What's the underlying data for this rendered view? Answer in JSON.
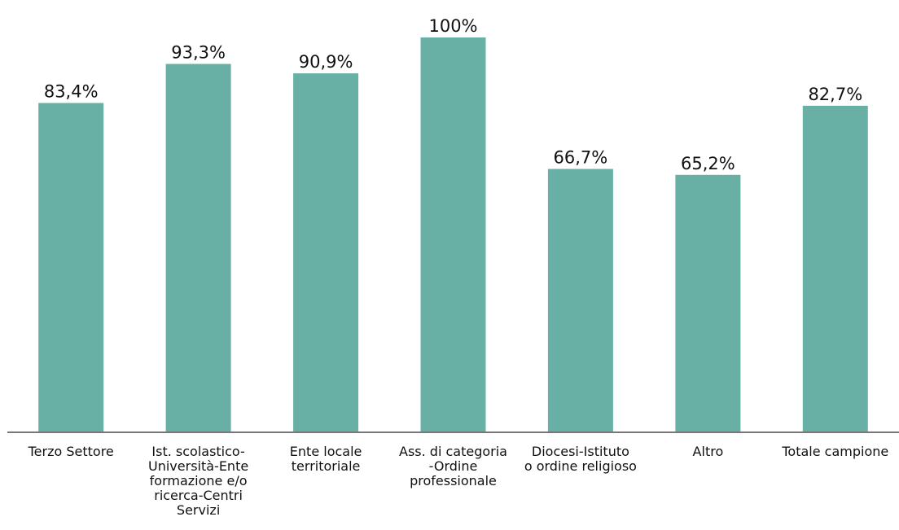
{
  "chart_data": {
    "type": "bar",
    "title": "",
    "xlabel": "",
    "ylabel": "",
    "ylim": [
      0,
      100
    ],
    "grid": false,
    "legend": "none",
    "bar_color": "#68b0a5",
    "axis_color": "#777777",
    "categories": [
      "Terzo Settore",
      "Ist. scolastico-Università-Ente formazione e/o ricerca-Centri Servizi",
      "Ente locale territoriale",
      "Ass. di categoria -Ordine professionale",
      "Diocesi-Istituto o ordine religioso",
      "Altro",
      "Totale campione"
    ],
    "category_lines": [
      [
        "Terzo Settore"
      ],
      [
        "Ist. scolastico-",
        "Università-Ente",
        "formazione e/o",
        "ricerca-Centri",
        "Servizi"
      ],
      [
        "Ente locale",
        "territoriale"
      ],
      [
        "Ass. di categoria",
        "-Ordine",
        "professionale"
      ],
      [
        "Diocesi-Istituto",
        "o ordine religioso"
      ],
      [
        "Altro"
      ],
      [
        "Totale campione"
      ]
    ],
    "values": [
      83.4,
      93.3,
      90.9,
      100,
      66.7,
      65.2,
      82.7
    ],
    "value_labels": [
      "83,4%",
      "93,3%",
      "90,9%",
      "100%",
      "66,7%",
      "65,2%",
      "82,7%"
    ]
  }
}
